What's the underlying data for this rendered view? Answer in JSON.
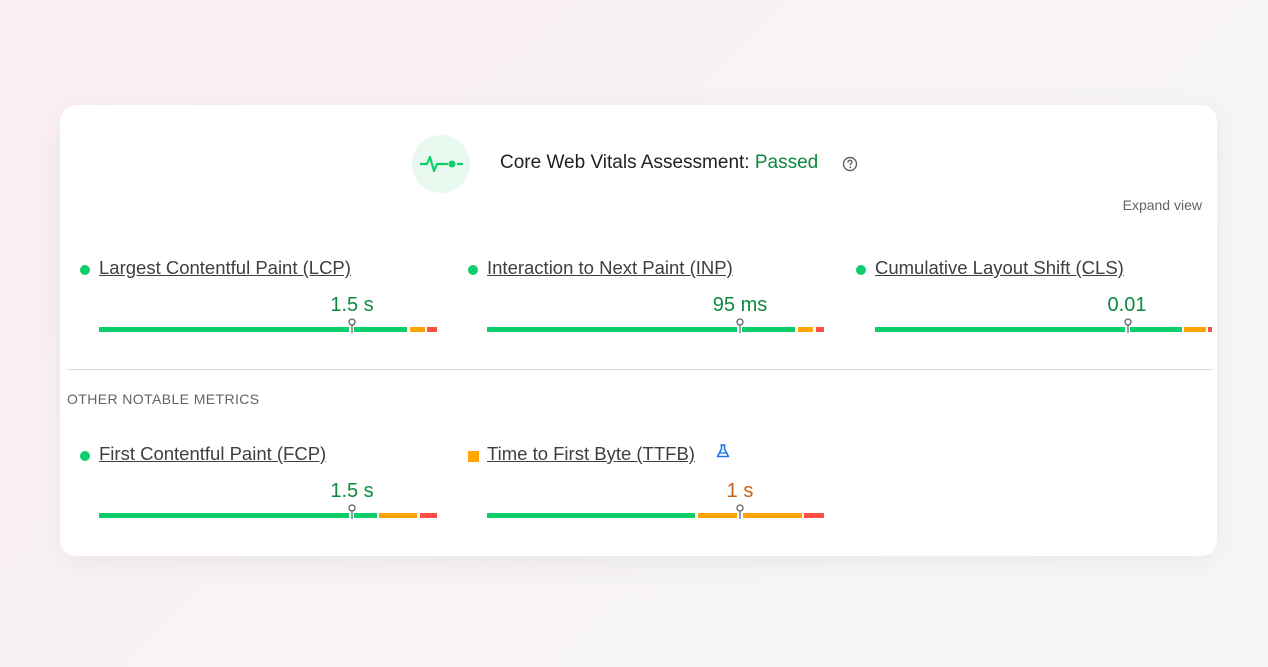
{
  "header": {
    "title": "Core Web Vitals Assessment:",
    "status": "Passed",
    "icon": "pulse-icon",
    "help_icon": "help-circle-icon"
  },
  "expand_label": "Expand view",
  "core_metrics": [
    {
      "name": "Largest Contentful Paint (LCP)",
      "value": "1.5 s",
      "rating": "good"
    },
    {
      "name": "Interaction to Next Paint (INP)",
      "value": "95 ms",
      "rating": "good"
    },
    {
      "name": "Cumulative Layout Shift (CLS)",
      "value": "0.01",
      "rating": "good"
    }
  ],
  "section_label": "OTHER NOTABLE METRICS",
  "other_metrics": [
    {
      "name": "First Contentful Paint (FCP)",
      "value": "1.5 s",
      "rating": "good"
    },
    {
      "name": "Time to First Byte (TTFB)",
      "value": "1 s",
      "rating": "needs-improvement",
      "badge_icon": "flask-icon"
    }
  ],
  "colors": {
    "good": "#0cce6b",
    "needs_improvement": "#ffa400",
    "poor": "#ff4e42",
    "passed_text": "#0b8a3e"
  }
}
